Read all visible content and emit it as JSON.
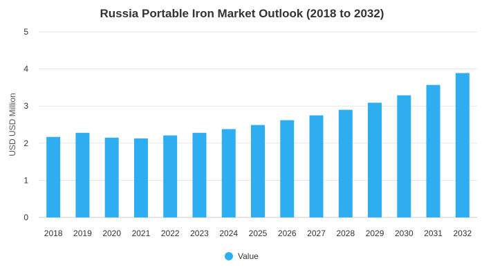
{
  "chart_data": {
    "type": "bar",
    "title": "Russia Portable Iron Market Outlook (2018 to 2032)",
    "xlabel": "",
    "ylabel": "USD USD Million",
    "categories": [
      "2018",
      "2019",
      "2020",
      "2021",
      "2022",
      "2023",
      "2024",
      "2025",
      "2026",
      "2027",
      "2028",
      "2029",
      "2030",
      "2031",
      "2032"
    ],
    "series": [
      {
        "name": "Value",
        "values": [
          2.17,
          2.28,
          2.15,
          2.13,
          2.21,
          2.28,
          2.38,
          2.49,
          2.62,
          2.75,
          2.9,
          3.09,
          3.29,
          3.57,
          3.89
        ],
        "color": "#2eaef0"
      }
    ],
    "ylim": [
      0,
      5
    ],
    "yticks": [
      0,
      1,
      2,
      3,
      4,
      5
    ],
    "grid": true,
    "legend_position": "bottom-center"
  }
}
